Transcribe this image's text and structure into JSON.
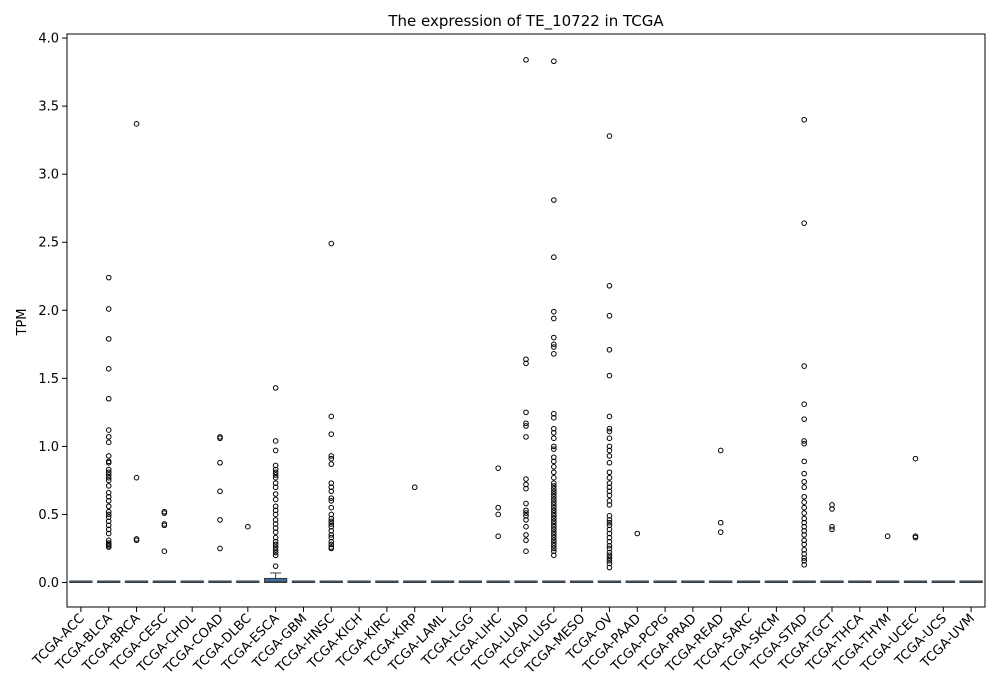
{
  "chart_data": {
    "type": "box",
    "title": "The expression of TE_10722 in TCGA",
    "xlabel": "",
    "ylabel": "TPM",
    "ylim": [
      -0.18,
      4.03
    ],
    "yticks": [
      0.0,
      0.5,
      1.0,
      1.5,
      2.0,
      2.5,
      3.0,
      3.5,
      4.0
    ],
    "ytick_labels": [
      "0.0",
      "0.5",
      "1.0",
      "1.5",
      "2.0",
      "2.5",
      "3.0",
      "3.5",
      "4.0"
    ],
    "box_color": "#3a6fa6",
    "categories": [
      "TCGA-ACC",
      "TCGA-BLCA",
      "TCGA-BRCA",
      "TCGA-CESC",
      "TCGA-CHOL",
      "TCGA-COAD",
      "TCGA-DLBC",
      "TCGA-ESCA",
      "TCGA-GBM",
      "TCGA-HNSC",
      "TCGA-KICH",
      "TCGA-KIRC",
      "TCGA-KIRP",
      "TCGA-LAML",
      "TCGA-LGG",
      "TCGA-LIHC",
      "TCGA-LUAD",
      "TCGA-LUSC",
      "TCGA-MESO",
      "TCGA-OV",
      "TCGA-PAAD",
      "TCGA-PCPG",
      "TCGA-PRAD",
      "TCGA-READ",
      "TCGA-SARC",
      "TCGA-SKCM",
      "TCGA-STAD",
      "TCGA-TGCT",
      "TCGA-THCA",
      "TCGA-THYM",
      "TCGA-UCEC",
      "TCGA-UCS",
      "TCGA-UVM"
    ],
    "boxes": [
      {
        "q1": 0,
        "median": 0,
        "q3": 0,
        "whisker_low": 0,
        "whisker_high": 0,
        "outliers": []
      },
      {
        "q1": 0,
        "median": 0,
        "q3": 0,
        "whisker_low": 0,
        "whisker_high": 0,
        "outliers": [
          2.24,
          2.01,
          1.79,
          1.57,
          1.35,
          1.12,
          1.07,
          1.03,
          0.93,
          0.89,
          0.88,
          0.83,
          0.81,
          0.79,
          0.77,
          0.75,
          0.71,
          0.66,
          0.63,
          0.6,
          0.56,
          0.52,
          0.5,
          0.48,
          0.45,
          0.42,
          0.39,
          0.36,
          0.31,
          0.29,
          0.28,
          0.27,
          0.26
        ]
      },
      {
        "q1": 0,
        "median": 0,
        "q3": 0,
        "whisker_low": 0,
        "whisker_high": 0,
        "outliers": [
          3.37,
          0.77,
          0.32,
          0.31
        ]
      },
      {
        "q1": 0,
        "median": 0,
        "q3": 0,
        "whisker_low": 0,
        "whisker_high": 0,
        "outliers": [
          0.52,
          0.51,
          0.43,
          0.42,
          0.23
        ]
      },
      {
        "q1": 0,
        "median": 0,
        "q3": 0,
        "whisker_low": 0,
        "whisker_high": 0,
        "outliers": []
      },
      {
        "q1": 0,
        "median": 0,
        "q3": 0,
        "whisker_low": 0,
        "whisker_high": 0,
        "outliers": [
          1.07,
          1.06,
          0.88,
          0.67,
          0.46,
          0.25
        ]
      },
      {
        "q1": 0,
        "median": 0,
        "q3": 0,
        "whisker_low": 0,
        "whisker_high": 0,
        "outliers": [
          0.41
        ]
      },
      {
        "q1": 0,
        "median": 0.005,
        "q3": 0.03,
        "whisker_low": 0,
        "whisker_high": 0.07,
        "outliers": [
          1.43,
          1.04,
          0.97,
          0.86,
          0.83,
          0.81,
          0.79,
          0.77,
          0.73,
          0.7,
          0.65,
          0.61,
          0.56,
          0.53,
          0.5,
          0.46,
          0.43,
          0.4,
          0.37,
          0.33,
          0.3,
          0.28,
          0.26,
          0.24,
          0.22,
          0.2,
          0.12
        ]
      },
      {
        "q1": 0,
        "median": 0,
        "q3": 0,
        "whisker_low": 0,
        "whisker_high": 0,
        "outliers": []
      },
      {
        "q1": 0,
        "median": 0,
        "q3": 0,
        "whisker_low": 0,
        "whisker_high": 0,
        "outliers": [
          2.49,
          1.22,
          1.09,
          0.93,
          0.91,
          0.87,
          0.73,
          0.7,
          0.67,
          0.62,
          0.6,
          0.55,
          0.5,
          0.47,
          0.45,
          0.43,
          0.41,
          0.38,
          0.35,
          0.33,
          0.3,
          0.28,
          0.26,
          0.25
        ]
      },
      {
        "q1": 0,
        "median": 0,
        "q3": 0,
        "whisker_low": 0,
        "whisker_high": 0,
        "outliers": []
      },
      {
        "q1": 0,
        "median": 0,
        "q3": 0,
        "whisker_low": 0,
        "whisker_high": 0,
        "outliers": []
      },
      {
        "q1": 0,
        "median": 0,
        "q3": 0,
        "whisker_low": 0,
        "whisker_high": 0,
        "outliers": [
          0.7
        ]
      },
      {
        "q1": 0,
        "median": 0,
        "q3": 0,
        "whisker_low": 0,
        "whisker_high": 0,
        "outliers": []
      },
      {
        "q1": 0,
        "median": 0,
        "q3": 0,
        "whisker_low": 0,
        "whisker_high": 0,
        "outliers": []
      },
      {
        "q1": 0,
        "median": 0,
        "q3": 0,
        "whisker_low": 0,
        "whisker_high": 0,
        "outliers": [
          0.84,
          0.55,
          0.5,
          0.34
        ]
      },
      {
        "q1": 0,
        "median": 0,
        "q3": 0,
        "whisker_low": 0,
        "whisker_high": 0,
        "outliers": [
          3.84,
          1.64,
          1.61,
          1.25,
          1.17,
          1.15,
          1.07,
          0.76,
          0.72,
          0.69,
          0.58,
          0.53,
          0.51,
          0.49,
          0.46,
          0.41,
          0.35,
          0.31,
          0.23
        ]
      },
      {
        "q1": 0,
        "median": 0,
        "q3": 0,
        "whisker_low": 0,
        "whisker_high": 0,
        "outliers": [
          3.83,
          2.81,
          2.39,
          1.99,
          1.94,
          1.8,
          1.75,
          1.73,
          1.68,
          1.24,
          1.21,
          1.13,
          1.1,
          1.06,
          1.0,
          0.98,
          0.92,
          0.89,
          0.85,
          0.81,
          0.77,
          0.73,
          0.71,
          0.69,
          0.67,
          0.65,
          0.63,
          0.61,
          0.59,
          0.57,
          0.55,
          0.53,
          0.51,
          0.49,
          0.47,
          0.45,
          0.43,
          0.41,
          0.39,
          0.37,
          0.35,
          0.33,
          0.31,
          0.29,
          0.27,
          0.25,
          0.23,
          0.2
        ]
      },
      {
        "q1": 0,
        "median": 0,
        "q3": 0,
        "whisker_low": 0,
        "whisker_high": 0,
        "outliers": []
      },
      {
        "q1": 0,
        "median": 0,
        "q3": 0,
        "whisker_low": 0,
        "whisker_high": 0,
        "outliers": [
          3.28,
          2.18,
          1.96,
          1.71,
          1.52,
          1.22,
          1.13,
          1.11,
          1.06,
          1.0,
          0.97,
          0.93,
          0.88,
          0.81,
          0.77,
          0.73,
          0.7,
          0.67,
          0.64,
          0.6,
          0.57,
          0.49,
          0.46,
          0.44,
          0.42,
          0.39,
          0.36,
          0.33,
          0.3,
          0.27,
          0.25,
          0.22,
          0.2,
          0.18,
          0.16,
          0.14,
          0.11
        ]
      },
      {
        "q1": 0,
        "median": 0,
        "q3": 0,
        "whisker_low": 0,
        "whisker_high": 0,
        "outliers": [
          0.36
        ]
      },
      {
        "q1": 0,
        "median": 0,
        "q3": 0,
        "whisker_low": 0,
        "whisker_high": 0,
        "outliers": []
      },
      {
        "q1": 0,
        "median": 0,
        "q3": 0,
        "whisker_low": 0,
        "whisker_high": 0,
        "outliers": []
      },
      {
        "q1": 0,
        "median": 0,
        "q3": 0,
        "whisker_low": 0,
        "whisker_high": 0,
        "outliers": [
          0.97,
          0.44,
          0.37
        ]
      },
      {
        "q1": 0,
        "median": 0,
        "q3": 0,
        "whisker_low": 0,
        "whisker_high": 0,
        "outliers": []
      },
      {
        "q1": 0,
        "median": 0,
        "q3": 0,
        "whisker_low": 0,
        "whisker_high": 0,
        "outliers": []
      },
      {
        "q1": 0,
        "median": 0,
        "q3": 0,
        "whisker_low": 0,
        "whisker_high": 0,
        "outliers": [
          3.4,
          2.64,
          1.59,
          1.31,
          1.2,
          1.04,
          1.02,
          0.89,
          0.8,
          0.74,
          0.7,
          0.63,
          0.59,
          0.55,
          0.51,
          0.47,
          0.44,
          0.41,
          0.38,
          0.35,
          0.31,
          0.28,
          0.24,
          0.21,
          0.18,
          0.16,
          0.13
        ]
      },
      {
        "q1": 0,
        "median": 0,
        "q3": 0,
        "whisker_low": 0,
        "whisker_high": 0,
        "outliers": [
          0.57,
          0.54,
          0.41,
          0.39
        ]
      },
      {
        "q1": 0,
        "median": 0,
        "q3": 0,
        "whisker_low": 0,
        "whisker_high": 0,
        "outliers": []
      },
      {
        "q1": 0,
        "median": 0,
        "q3": 0,
        "whisker_low": 0,
        "whisker_high": 0,
        "outliers": [
          0.34
        ]
      },
      {
        "q1": 0,
        "median": 0,
        "q3": 0,
        "whisker_low": 0,
        "whisker_high": 0,
        "outliers": [
          0.91,
          0.34,
          0.33
        ]
      },
      {
        "q1": 0,
        "median": 0,
        "q3": 0,
        "whisker_low": 0,
        "whisker_high": 0,
        "outliers": []
      },
      {
        "q1": 0,
        "median": 0,
        "q3": 0,
        "whisker_low": 0,
        "whisker_high": 0,
        "outliers": []
      }
    ]
  }
}
